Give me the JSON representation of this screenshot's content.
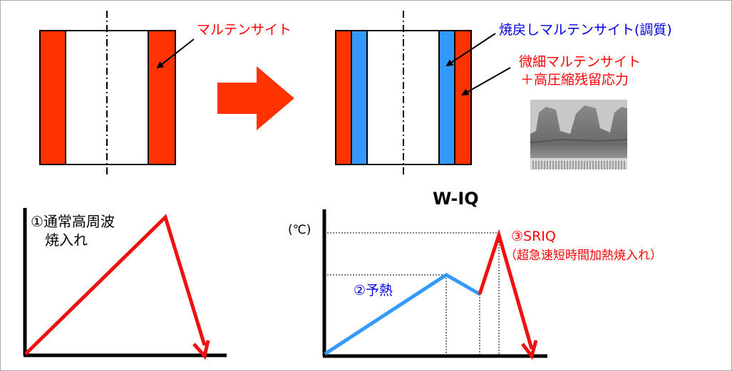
{
  "colors": {
    "martensite_red": "#ff3300",
    "tempered_blue": "#3399ff",
    "blue_text": "#0000dd",
    "red_text": "#ff0000",
    "axis": "#000000",
    "preheat_line": "#3399ff"
  },
  "top_left": {
    "label": "マルテンサイト"
  },
  "top_right": {
    "label_tempered": "焼戻しマルテンサイト(調質)",
    "label_fine_line1": "微細マルテンサイト",
    "label_fine_line2": "＋高圧縮残留応力"
  },
  "photo": {
    "icon": "gear-photo"
  },
  "graph_left": {
    "label_line1": "①通常高周波",
    "label_line2": "焼入れ"
  },
  "graph_right": {
    "title": "W-IQ",
    "unit_label": "(℃)",
    "preheat_label": "②予熱",
    "sriq_label": "③SRIQ",
    "sriq_sub_label": "（超急速短時間加熱焼入れ）"
  }
}
